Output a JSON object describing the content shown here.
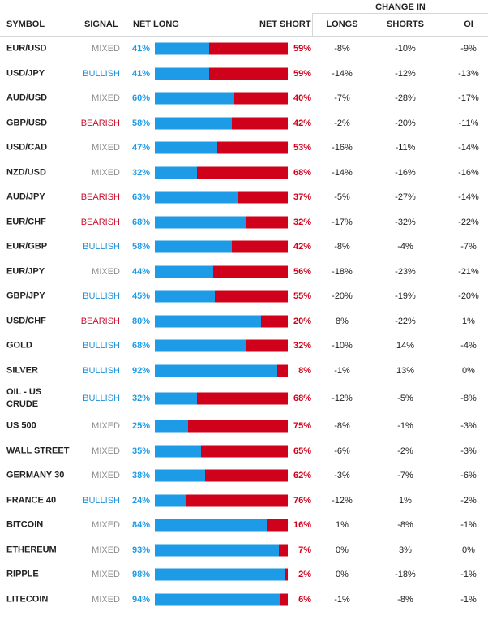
{
  "header": {
    "change_in": "CHANGE IN",
    "symbol": "SYMBOL",
    "signal": "SIGNAL",
    "net_long": "NET LONG",
    "net_short": "NET SHORT",
    "longs": "LONGS",
    "shorts": "SHORTS",
    "oi": "OI"
  },
  "colors": {
    "long": "#1e9be6",
    "short": "#d0021b",
    "bullish": "#1e8fd6",
    "bearish": "#c8102e",
    "mixed": "#8c8c8c"
  },
  "rows": [
    {
      "symbol": "EUR/USD",
      "signal": "MIXED",
      "net_long": "41%",
      "net_long_value": 41,
      "net_short": "59%",
      "longs": "-8%",
      "shorts": "-10%",
      "oi": "-9%"
    },
    {
      "symbol": "USD/JPY",
      "signal": "BULLISH",
      "net_long": "41%",
      "net_long_value": 41,
      "net_short": "59%",
      "longs": "-14%",
      "shorts": "-12%",
      "oi": "-13%"
    },
    {
      "symbol": "AUD/USD",
      "signal": "MIXED",
      "net_long": "60%",
      "net_long_value": 60,
      "net_short": "40%",
      "longs": "-7%",
      "shorts": "-28%",
      "oi": "-17%"
    },
    {
      "symbol": "GBP/USD",
      "signal": "BEARISH",
      "net_long": "58%",
      "net_long_value": 58,
      "net_short": "42%",
      "longs": "-2%",
      "shorts": "-20%",
      "oi": "-11%"
    },
    {
      "symbol": "USD/CAD",
      "signal": "MIXED",
      "net_long": "47%",
      "net_long_value": 47,
      "net_short": "53%",
      "longs": "-16%",
      "shorts": "-11%",
      "oi": "-14%"
    },
    {
      "symbol": "NZD/USD",
      "signal": "MIXED",
      "net_long": "32%",
      "net_long_value": 32,
      "net_short": "68%",
      "longs": "-14%",
      "shorts": "-16%",
      "oi": "-16%"
    },
    {
      "symbol": "AUD/JPY",
      "signal": "BEARISH",
      "net_long": "63%",
      "net_long_value": 63,
      "net_short": "37%",
      "longs": "-5%",
      "shorts": "-27%",
      "oi": "-14%"
    },
    {
      "symbol": "EUR/CHF",
      "signal": "BEARISH",
      "net_long": "68%",
      "net_long_value": 68,
      "net_short": "32%",
      "longs": "-17%",
      "shorts": "-32%",
      "oi": "-22%"
    },
    {
      "symbol": "EUR/GBP",
      "signal": "BULLISH",
      "net_long": "58%",
      "net_long_value": 58,
      "net_short": "42%",
      "longs": "-8%",
      "shorts": "-4%",
      "oi": "-7%"
    },
    {
      "symbol": "EUR/JPY",
      "signal": "MIXED",
      "net_long": "44%",
      "net_long_value": 44,
      "net_short": "56%",
      "longs": "-18%",
      "shorts": "-23%",
      "oi": "-21%"
    },
    {
      "symbol": "GBP/JPY",
      "signal": "BULLISH",
      "net_long": "45%",
      "net_long_value": 45,
      "net_short": "55%",
      "longs": "-20%",
      "shorts": "-19%",
      "oi": "-20%"
    },
    {
      "symbol": "USD/CHF",
      "signal": "BEARISH",
      "net_long": "80%",
      "net_long_value": 80,
      "net_short": "20%",
      "longs": "8%",
      "shorts": "-22%",
      "oi": "1%"
    },
    {
      "symbol": "GOLD",
      "signal": "BULLISH",
      "net_long": "68%",
      "net_long_value": 68,
      "net_short": "32%",
      "longs": "-10%",
      "shorts": "14%",
      "oi": "-4%"
    },
    {
      "symbol": "SILVER",
      "signal": "BULLISH",
      "net_long": "92%",
      "net_long_value": 92,
      "net_short": "8%",
      "longs": "-1%",
      "shorts": "13%",
      "oi": "0%"
    },
    {
      "symbol": "OIL - US CRUDE",
      "signal": "BULLISH",
      "net_long": "32%",
      "net_long_value": 32,
      "net_short": "68%",
      "longs": "-12%",
      "shorts": "-5%",
      "oi": "-8%"
    },
    {
      "symbol": "US 500",
      "signal": "MIXED",
      "net_long": "25%",
      "net_long_value": 25,
      "net_short": "75%",
      "longs": "-8%",
      "shorts": "-1%",
      "oi": "-3%"
    },
    {
      "symbol": "WALL STREET",
      "signal": "MIXED",
      "net_long": "35%",
      "net_long_value": 35,
      "net_short": "65%",
      "longs": "-6%",
      "shorts": "-2%",
      "oi": "-3%"
    },
    {
      "symbol": "GERMANY 30",
      "signal": "MIXED",
      "net_long": "38%",
      "net_long_value": 38,
      "net_short": "62%",
      "longs": "-3%",
      "shorts": "-7%",
      "oi": "-6%"
    },
    {
      "symbol": "FRANCE 40",
      "signal": "BULLISH",
      "net_long": "24%",
      "net_long_value": 24,
      "net_short": "76%",
      "longs": "-12%",
      "shorts": "1%",
      "oi": "-2%"
    },
    {
      "symbol": "BITCOIN",
      "signal": "MIXED",
      "net_long": "84%",
      "net_long_value": 84,
      "net_short": "16%",
      "longs": "1%",
      "shorts": "-8%",
      "oi": "-1%"
    },
    {
      "symbol": "ETHEREUM",
      "signal": "MIXED",
      "net_long": "93%",
      "net_long_value": 93,
      "net_short": "7%",
      "longs": "0%",
      "shorts": "3%",
      "oi": "0%"
    },
    {
      "symbol": "RIPPLE",
      "signal": "MIXED",
      "net_long": "98%",
      "net_long_value": 98,
      "net_short": "2%",
      "longs": "0%",
      "shorts": "-18%",
      "oi": "-1%"
    },
    {
      "symbol": "LITECOIN",
      "signal": "MIXED",
      "net_long": "94%",
      "net_long_value": 94,
      "net_short": "6%",
      "longs": "-1%",
      "shorts": "-8%",
      "oi": "-1%"
    }
  ]
}
